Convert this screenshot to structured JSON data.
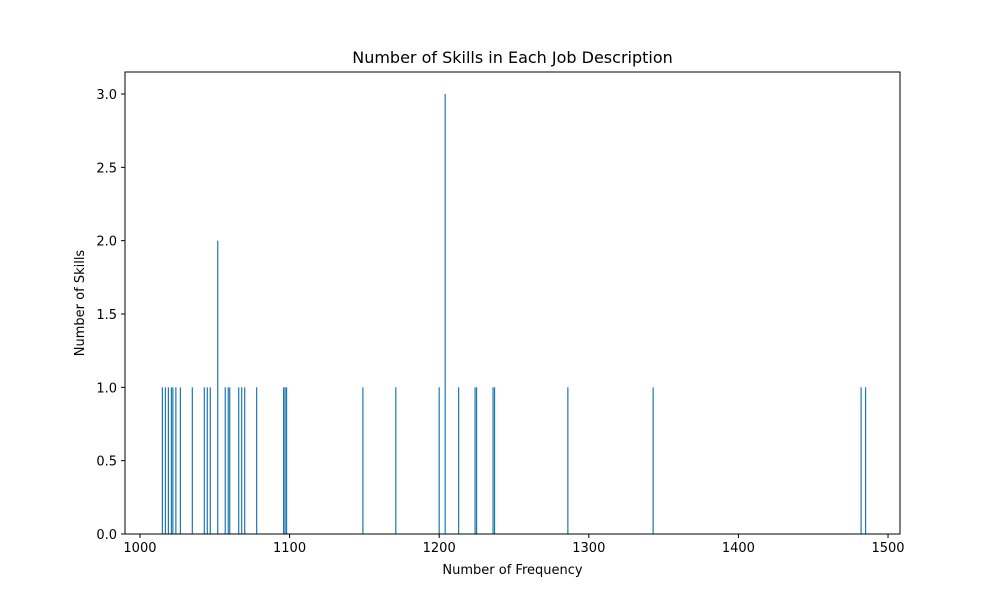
{
  "chart_data": {
    "type": "bar",
    "title": "Number of Skills in Each Job Description",
    "xlabel": "Number of Frequency",
    "ylabel": "Number of Skills",
    "xlim": [
      990,
      1508
    ],
    "ylim": [
      0,
      3.15
    ],
    "xticks": [
      1000,
      1100,
      1200,
      1300,
      1400,
      1500
    ],
    "yticks": [
      0.0,
      0.5,
      1.0,
      1.5,
      2.0,
      2.5,
      3.0
    ],
    "xtick_labels": [
      "1000",
      "1100",
      "1200",
      "1300",
      "1400",
      "1500"
    ],
    "ytick_labels": [
      "0.0",
      "0.5",
      "1.0",
      "1.5",
      "2.0",
      "2.5",
      "3.0"
    ],
    "bar_color": "#1f77b4",
    "grid": false,
    "x": [
      1015,
      1017,
      1019,
      1021,
      1022,
      1024,
      1027,
      1035,
      1043,
      1045,
      1047,
      1052,
      1057,
      1059,
      1060,
      1066,
      1068,
      1070,
      1078,
      1096,
      1097,
      1098,
      1149,
      1171,
      1200,
      1204,
      1213,
      1224,
      1225,
      1236,
      1237,
      1286,
      1343,
      1482,
      1485
    ],
    "values": [
      1,
      1,
      1,
      1,
      1,
      1,
      1,
      1,
      1,
      1,
      1,
      2,
      1,
      1,
      1,
      1,
      1,
      1,
      1,
      1,
      1,
      1,
      1,
      1,
      1,
      3,
      1,
      1,
      1,
      1,
      1,
      1,
      1,
      1,
      1
    ]
  }
}
